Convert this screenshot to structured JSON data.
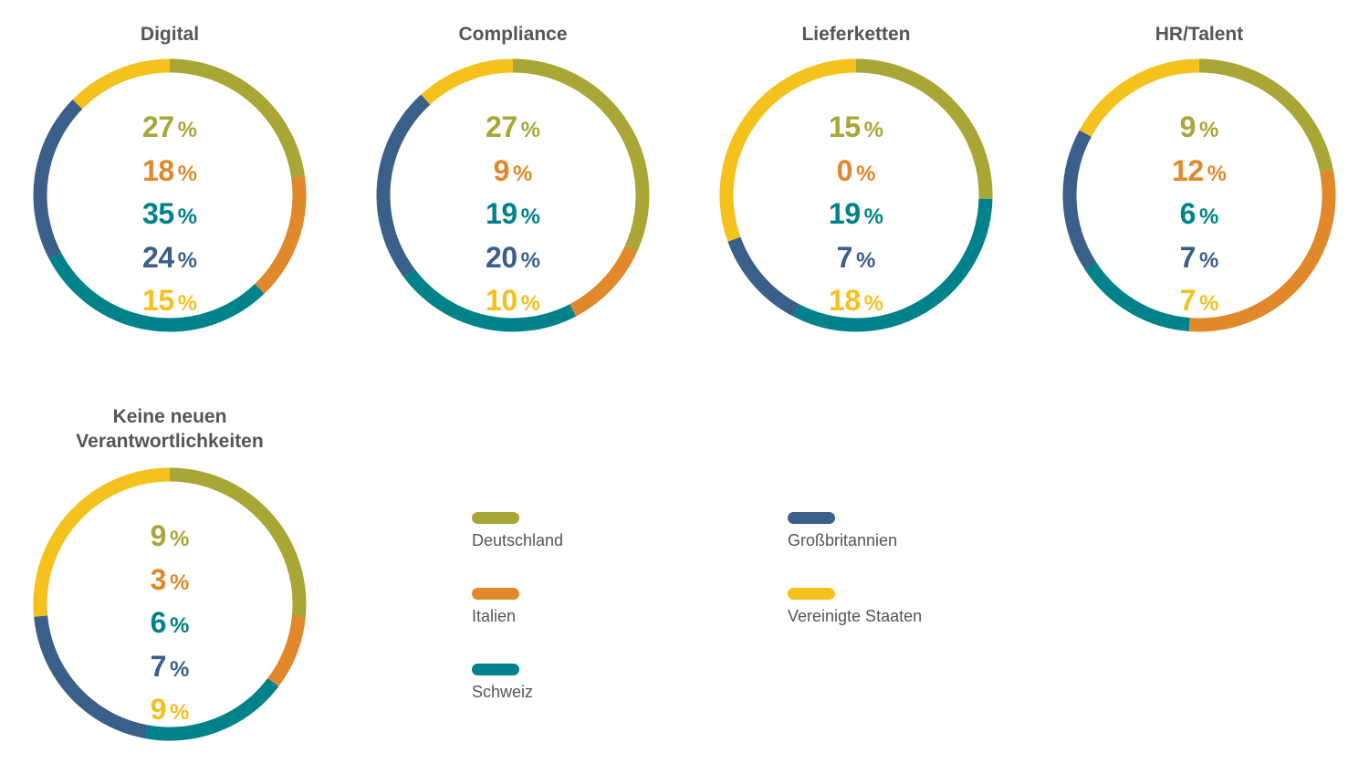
{
  "chart_data": {
    "type": "pie",
    "subtype": "donut",
    "categories": [
      "Deutschland",
      "Italien",
      "Schweiz",
      "Großbritannien",
      "Vereinigte Staaten"
    ],
    "colors": [
      "#a8a634",
      "#e0882a",
      "#00828a",
      "#3a5f88",
      "#f5c11d"
    ],
    "percent_unit": "%",
    "charts": [
      {
        "title": "Digital",
        "values": [
          27,
          18,
          35,
          24,
          15
        ]
      },
      {
        "title": "Compliance",
        "values": [
          27,
          9,
          19,
          20,
          10
        ]
      },
      {
        "title": "Lieferketten",
        "values": [
          15,
          0,
          19,
          7,
          18
        ]
      },
      {
        "title": "HR/Talent",
        "values": [
          9,
          12,
          6,
          7,
          7
        ]
      },
      {
        "title": "Keine neuen Verantwortlichkeiten",
        "values": [
          9,
          3,
          6,
          7,
          9
        ]
      }
    ]
  },
  "legend": {
    "items": [
      {
        "label": "Deutschland",
        "color": "#a8a634"
      },
      {
        "label": "Italien",
        "color": "#e0882a"
      },
      {
        "label": "Schweiz",
        "color": "#00828a"
      },
      {
        "label": "Großbritannien",
        "color": "#3a5f88"
      },
      {
        "label": "Vereinigte Staaten",
        "color": "#f5c11d"
      }
    ]
  }
}
